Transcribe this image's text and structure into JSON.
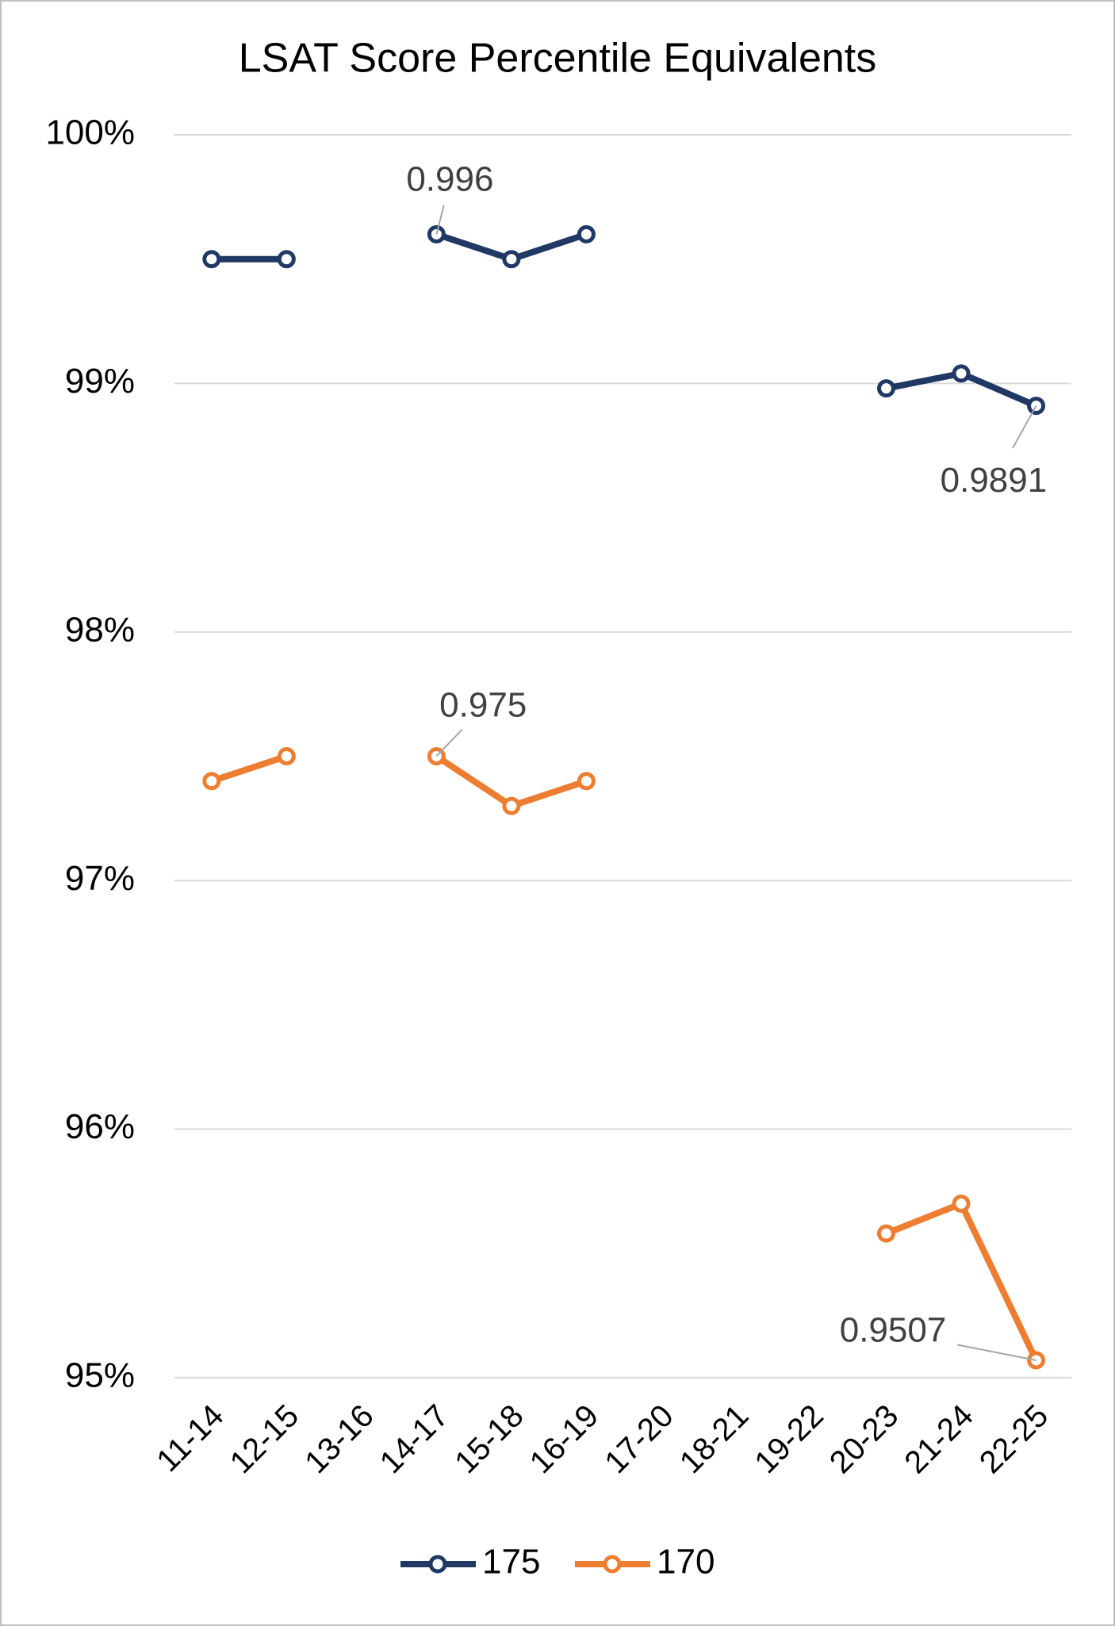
{
  "chart_data": {
    "type": "line",
    "title": "LSAT Score Percentile Equivalents",
    "categories": [
      "11-14",
      "12-15",
      "13-16",
      "14-17",
      "15-18",
      "16-19",
      "17-20",
      "18-21",
      "19-22",
      "20-23",
      "21-24",
      "22-25"
    ],
    "series": [
      {
        "name": "175",
        "color": "#203864",
        "values": [
          0.995,
          0.995,
          null,
          0.996,
          0.995,
          0.996,
          null,
          null,
          null,
          0.9898,
          0.9904,
          0.9891
        ],
        "value_labels": [
          null,
          null,
          null,
          "0.996",
          null,
          null,
          null,
          null,
          null,
          null,
          null,
          "0.9891"
        ]
      },
      {
        "name": "170",
        "color": "#ed7d31",
        "values": [
          0.974,
          0.975,
          null,
          0.975,
          0.973,
          0.974,
          null,
          null,
          null,
          0.9558,
          0.957,
          0.9507
        ],
        "value_labels": [
          null,
          null,
          null,
          "0.975",
          null,
          null,
          null,
          null,
          null,
          null,
          null,
          "0.9507"
        ]
      }
    ],
    "ylim": [
      0.95,
      1.0
    ],
    "yticks": [
      {
        "value": 0.95,
        "label": "95%"
      },
      {
        "value": 0.96,
        "label": "96%"
      },
      {
        "value": 0.97,
        "label": "97%"
      },
      {
        "value": 0.98,
        "label": "98%"
      },
      {
        "value": 0.99,
        "label": "99%"
      },
      {
        "value": 1.0,
        "label": "100%"
      }
    ],
    "grid": true,
    "legend": "bottom"
  }
}
